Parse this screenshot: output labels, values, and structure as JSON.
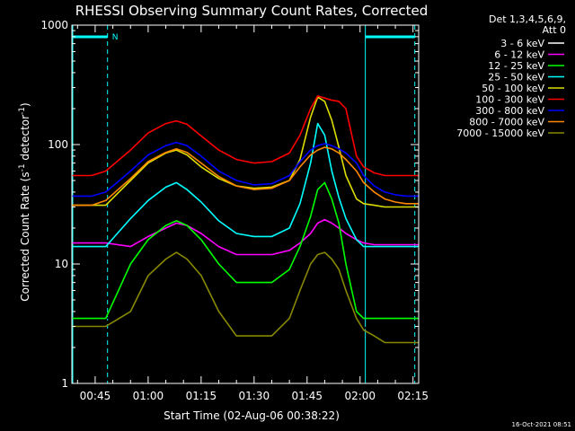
{
  "chart_data": {
    "type": "line",
    "title": "RHESSI Observing Summary Count Rates, Corrected",
    "xlabel": "Start Time (02-Aug-06 00:38:22)",
    "ylabel_main": "Corrected Count Rate (s",
    "ylabel_sup1": "-1",
    "ylabel_mid": " detector",
    "ylabel_sup2": "-1",
    "ylabel_end": ")",
    "yscale": "log",
    "ylim": [
      1,
      1000
    ],
    "xlim_minutes": [
      38.4,
      136.6
    ],
    "xticks": [
      {
        "minutes": 45,
        "label": "00:45"
      },
      {
        "minutes": 60,
        "label": "01:00"
      },
      {
        "minutes": 75,
        "label": "01:15"
      },
      {
        "minutes": 90,
        "label": "01:30"
      },
      {
        "minutes": 105,
        "label": "01:45"
      },
      {
        "minutes": 120,
        "label": "02:00"
      },
      {
        "minutes": 135,
        "label": "02:15"
      }
    ],
    "yticks": [
      {
        "value": 1,
        "label": "1"
      },
      {
        "value": 10,
        "label": "10"
      },
      {
        "value": 100,
        "label": "100"
      },
      {
        "value": 1000,
        "label": "1000"
      }
    ],
    "legend_header": [
      "Det 1,3,4,5,6,9,",
      "Att 0"
    ],
    "legend_position": "right",
    "x_minutes": [
      38.4,
      44,
      48,
      55,
      60,
      65,
      68,
      71,
      75,
      80,
      85,
      90,
      95,
      100,
      103,
      106,
      108,
      110,
      112,
      114,
      116,
      119,
      121,
      124,
      127,
      130,
      133,
      136.6
    ],
    "series": [
      {
        "name": "3 - 6 keV",
        "color": "#000000",
        "values": [
          3.5,
          3.5,
          3.5,
          4,
          8,
          11,
          13,
          12,
          9,
          4,
          2.5,
          2.5,
          2.5,
          3.5,
          6,
          10,
          13,
          13.5,
          12,
          10,
          7,
          4,
          3,
          2.5,
          2.2,
          2.2,
          2.2,
          2.2
        ]
      },
      {
        "name": "6 - 12 keV",
        "color": "#ff00ff",
        "values": [
          15,
          15,
          15,
          14,
          17,
          20,
          22,
          21,
          18,
          14,
          12,
          12,
          12,
          13,
          15,
          18,
          22,
          23.5,
          22,
          20,
          18,
          16,
          15,
          14.5,
          14.5,
          14.5,
          14.5,
          14.5
        ]
      },
      {
        "name": "12 - 25 keV",
        "color": "#00ff00",
        "values": [
          3.5,
          3.5,
          3.5,
          10,
          16,
          21,
          23,
          21,
          16,
          10,
          7,
          7,
          7,
          9,
          14,
          25,
          42,
          48,
          35,
          22,
          10,
          4,
          3.5,
          3.5,
          3.5,
          3.5,
          3.5,
          3.5
        ]
      },
      {
        "name": "25 - 50 keV",
        "color": "#00ffff",
        "values": [
          14,
          14,
          14,
          24,
          34,
          44,
          48,
          42,
          33,
          23,
          18,
          17,
          17,
          20,
          32,
          70,
          150,
          120,
          60,
          36,
          24,
          16,
          14,
          14,
          14,
          14,
          14,
          14
        ]
      },
      {
        "name": "50 - 100 keV",
        "color": "#dddd00",
        "values": [
          31,
          31,
          31,
          50,
          70,
          85,
          90,
          82,
          65,
          52,
          45,
          43,
          44,
          50,
          75,
          170,
          250,
          230,
          160,
          95,
          55,
          35,
          32,
          31,
          30,
          30,
          30,
          30
        ]
      },
      {
        "name": "100 - 300 keV",
        "color": "#ff0000",
        "values": [
          55,
          55,
          60,
          90,
          125,
          150,
          158,
          148,
          118,
          90,
          75,
          70,
          72,
          85,
          120,
          200,
          255,
          245,
          235,
          230,
          200,
          80,
          65,
          58,
          55,
          55,
          55,
          55
        ]
      },
      {
        "name": "300 - 800 keV",
        "color": "#0000ff",
        "values": [
          37,
          37,
          40,
          60,
          82,
          98,
          104,
          98,
          80,
          60,
          50,
          46,
          47,
          55,
          72,
          90,
          98,
          102,
          98,
          92,
          85,
          70,
          55,
          45,
          40,
          38,
          37,
          37
        ]
      },
      {
        "name": "800 - 7000 keV",
        "color": "#ff8800",
        "values": [
          31,
          31,
          34,
          52,
          72,
          86,
          92,
          86,
          70,
          54,
          45,
          42,
          43,
          50,
          65,
          82,
          90,
          95,
          92,
          85,
          75,
          60,
          48,
          40,
          35,
          33,
          32,
          32
        ]
      },
      {
        "name": "7000 - 15000 keV",
        "color": "#888800",
        "values": [
          3,
          3,
          3,
          4,
          8,
          11,
          12.5,
          11,
          8,
          4,
          2.5,
          2.5,
          2.5,
          3.5,
          6,
          10,
          12,
          12.5,
          11,
          9,
          6,
          3.5,
          2.8,
          2.5,
          2.2,
          2.2,
          2.2,
          2.2
        ]
      }
    ],
    "night_label": "N",
    "night_intervals_minutes": [
      [
        38.4,
        48.5
      ],
      [
        121.5,
        135.5
      ]
    ],
    "saa_lines_minutes": [
      48.5,
      121.5,
      135.5
    ]
  },
  "footer": {
    "timestamp": "16-Oct-2021 08:51"
  }
}
